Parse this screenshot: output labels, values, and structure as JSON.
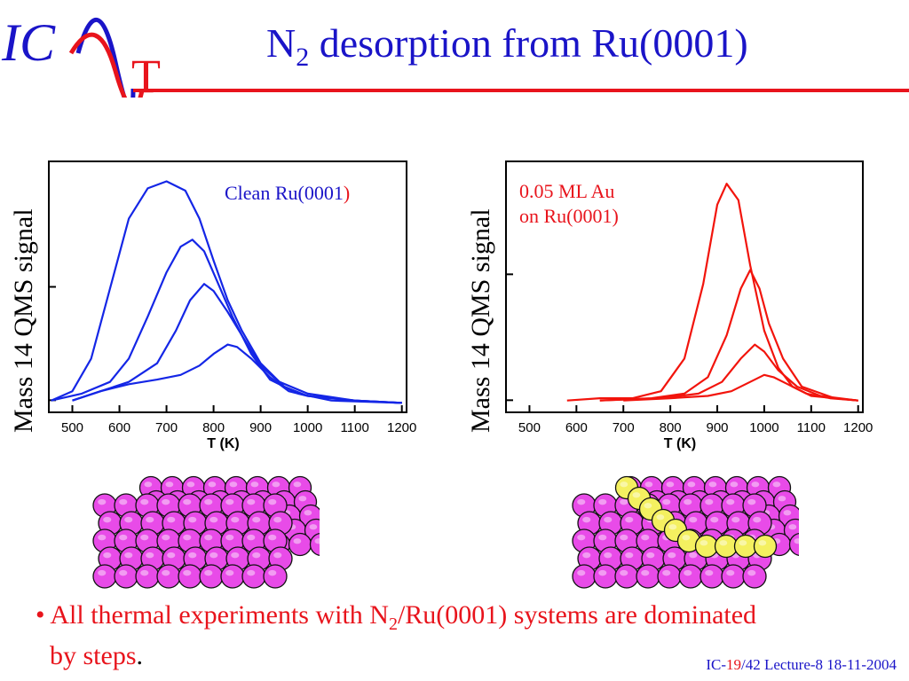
{
  "logo": {
    "letters": "IC",
    "letter_t": "T"
  },
  "slide": {
    "title_main": "N",
    "title_sub": "2",
    "title_rest": " desorption from Ru(0001)"
  },
  "charts_text": {
    "left_legend_a": "Clean Ru(0001",
    "left_legend_b": ")",
    "right_legend_line1": "0.05 ML Au",
    "right_legend_line2": "on Ru(0001)"
  },
  "bullet": {
    "dot": "•",
    "part1": "All thermal experiments with N",
    "sub": "2",
    "part2": "/Ru(0001) systems are dominated",
    "part3": "by steps",
    "period": "."
  },
  "footer": {
    "prefix": "IC-",
    "page": "19",
    "rest": "/42  Lecture-8 18-11-2004"
  },
  "colors": {
    "blue": "#1a14c8",
    "red": "#e8141c",
    "curve_blue": "#1426e6",
    "curve_red": "#f2140c",
    "atom_pink": "#e84be8",
    "atom_yellow": "#f4f060"
  },
  "surfaces": [
    {
      "label": "clean-ru-surface",
      "gold_row": false
    },
    {
      "label": "au-decorated-ru-surface",
      "gold_row": true
    }
  ],
  "chart_data": [
    {
      "type": "line",
      "title": "",
      "legend": "Clean Ru(0001)",
      "xlabel": "T (K)",
      "ylabel": "Mass 14 QMS signal",
      "xlim": [
        450,
        1210
      ],
      "ylim": [
        0,
        1
      ],
      "xticks": [
        500,
        600,
        700,
        800,
        900,
        1000,
        1100,
        1200
      ],
      "yticks_labels": false,
      "series": [
        {
          "values": [
            [
              455,
              0.02
            ],
            [
              500,
              0.06
            ],
            [
              540,
              0.2
            ],
            [
              580,
              0.5
            ],
            [
              620,
              0.8
            ],
            [
              660,
              0.93
            ],
            [
              700,
              0.96
            ],
            [
              740,
              0.92
            ],
            [
              770,
              0.8
            ],
            [
              800,
              0.62
            ],
            [
              830,
              0.45
            ],
            [
              860,
              0.32
            ],
            [
              900,
              0.18
            ],
            [
              940,
              0.1
            ],
            [
              1000,
              0.05
            ],
            [
              1100,
              0.02
            ],
            [
              1200,
              0.01
            ]
          ]
        },
        {
          "values": [
            [
              455,
              0.02
            ],
            [
              520,
              0.05
            ],
            [
              580,
              0.1
            ],
            [
              620,
              0.2
            ],
            [
              660,
              0.38
            ],
            [
              700,
              0.57
            ],
            [
              730,
              0.68
            ],
            [
              755,
              0.71
            ],
            [
              780,
              0.66
            ],
            [
              810,
              0.52
            ],
            [
              840,
              0.38
            ],
            [
              880,
              0.22
            ],
            [
              920,
              0.11
            ],
            [
              980,
              0.05
            ],
            [
              1050,
              0.02
            ],
            [
              1200,
              0.01
            ]
          ]
        },
        {
          "values": [
            [
              500,
              0.02
            ],
            [
              560,
              0.06
            ],
            [
              620,
              0.1
            ],
            [
              680,
              0.18
            ],
            [
              720,
              0.32
            ],
            [
              750,
              0.45
            ],
            [
              780,
              0.52
            ],
            [
              800,
              0.49
            ],
            [
              830,
              0.4
            ],
            [
              860,
              0.3
            ],
            [
              900,
              0.17
            ],
            [
              950,
              0.08
            ],
            [
              1000,
              0.04
            ],
            [
              1100,
              0.02
            ],
            [
              1200,
              0.01
            ]
          ]
        },
        {
          "values": [
            [
              500,
              0.02
            ],
            [
              560,
              0.06
            ],
            [
              620,
              0.09
            ],
            [
              680,
              0.11
            ],
            [
              730,
              0.13
            ],
            [
              770,
              0.17
            ],
            [
              800,
              0.22
            ],
            [
              830,
              0.26
            ],
            [
              850,
              0.25
            ],
            [
              880,
              0.2
            ],
            [
              920,
              0.12
            ],
            [
              960,
              0.06
            ],
            [
              1000,
              0.04
            ],
            [
              1100,
              0.02
            ],
            [
              1200,
              0.01
            ]
          ]
        }
      ]
    },
    {
      "type": "line",
      "title": "",
      "legend": "0.05 ML Au on Ru(0001)",
      "xlabel": "T (K)",
      "ylabel": "Mass 14 QMS signal",
      "xlim": [
        450,
        1210
      ],
      "ylim": [
        0,
        1
      ],
      "xticks": [
        500,
        600,
        700,
        800,
        900,
        1000,
        1100,
        1200
      ],
      "yticks_labels": false,
      "series": [
        {
          "values": [
            [
              580,
              0.02
            ],
            [
              650,
              0.03
            ],
            [
              720,
              0.03
            ],
            [
              780,
              0.06
            ],
            [
              830,
              0.2
            ],
            [
              870,
              0.52
            ],
            [
              900,
              0.86
            ],
            [
              920,
              0.95
            ],
            [
              945,
              0.88
            ],
            [
              970,
              0.6
            ],
            [
              1000,
              0.32
            ],
            [
              1030,
              0.16
            ],
            [
              1060,
              0.08
            ],
            [
              1100,
              0.04
            ],
            [
              1200,
              0.02
            ]
          ]
        },
        {
          "values": [
            [
              650,
              0.02
            ],
            [
              760,
              0.03
            ],
            [
              830,
              0.05
            ],
            [
              880,
              0.12
            ],
            [
              920,
              0.3
            ],
            [
              950,
              0.5
            ],
            [
              970,
              0.58
            ],
            [
              990,
              0.5
            ],
            [
              1010,
              0.35
            ],
            [
              1040,
              0.2
            ],
            [
              1080,
              0.08
            ],
            [
              1150,
              0.03
            ],
            [
              1200,
              0.02
            ]
          ]
        },
        {
          "values": [
            [
              650,
              0.02
            ],
            [
              780,
              0.03
            ],
            [
              860,
              0.05
            ],
            [
              910,
              0.1
            ],
            [
              950,
              0.2
            ],
            [
              980,
              0.26
            ],
            [
              1000,
              0.23
            ],
            [
              1030,
              0.15
            ],
            [
              1070,
              0.08
            ],
            [
              1120,
              0.04
            ],
            [
              1200,
              0.02
            ]
          ]
        },
        {
          "values": [
            [
              700,
              0.02
            ],
            [
              800,
              0.03
            ],
            [
              880,
              0.04
            ],
            [
              930,
              0.06
            ],
            [
              970,
              0.1
            ],
            [
              1000,
              0.13
            ],
            [
              1020,
              0.12
            ],
            [
              1050,
              0.09
            ],
            [
              1090,
              0.05
            ],
            [
              1140,
              0.03
            ],
            [
              1200,
              0.02
            ]
          ]
        }
      ]
    }
  ]
}
